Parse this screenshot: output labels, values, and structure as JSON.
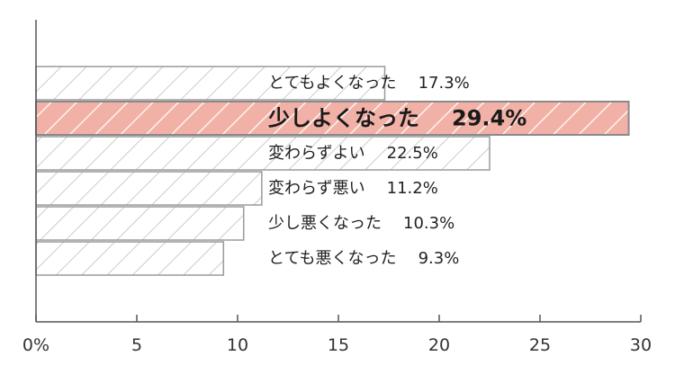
{
  "chart_data": {
    "type": "bar",
    "orientation": "horizontal",
    "categories": [
      "とてもよくなった",
      "少しよくなった",
      "変わらずよい",
      "変わらず悪い",
      "少し悪くなった",
      "とても悪くなった"
    ],
    "values": [
      17.3,
      29.4,
      22.5,
      11.2,
      10.3,
      9.3
    ],
    "value_labels": [
      "17.3%",
      "29.4%",
      "22.5%",
      "11.2%",
      "10.3%",
      "9.3%"
    ],
    "highlight_index": 1,
    "xlim": [
      0,
      30
    ],
    "x_ticks": [
      0,
      5,
      10,
      15,
      20,
      25,
      30
    ],
    "x_tick_labels": [
      "0%",
      "5",
      "10",
      "15",
      "20",
      "25",
      "30"
    ],
    "title": "",
    "xlabel": "",
    "ylabel": "",
    "grid": false,
    "colors": {
      "bar_fill": "#ffffff",
      "bar_hatch": "#cccccc",
      "bar_border": "#9a9a9a",
      "highlight_fill": "#f2b1a6",
      "highlight_hatch": "#ffffff",
      "highlight_border": "#8a8a8a",
      "axis": "#555555"
    }
  }
}
